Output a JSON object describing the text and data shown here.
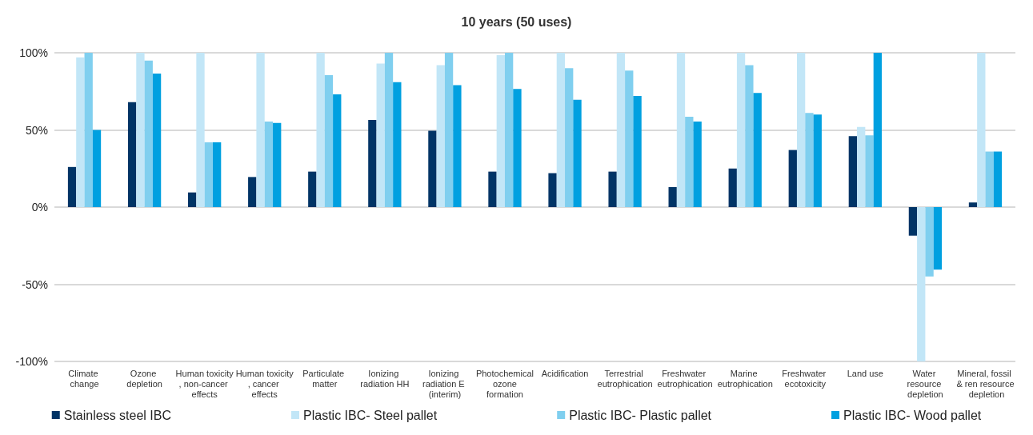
{
  "chart_data": {
    "type": "bar",
    "title": "10 years (50 uses)",
    "categories": [
      "Climate change",
      "Ozone depletion",
      "Human toxicity, non-cancer effects",
      "Human toxicity, cancer effects",
      "Particulate matter",
      "Ionizing radiation HH",
      "Ionizing radiation E (interim)",
      "Photochemical ozone formation",
      "Acidification",
      "Terrestrial eutrophication",
      "Freshwater eutrophication",
      "Marine eutrophication",
      "Freshwater ecotoxicity",
      "Land use",
      "Water resource depletion",
      "Mineral, fossil & ren resource depletion"
    ],
    "series": [
      {
        "name": "Stainless steel IBC",
        "color": "#003466",
        "values": [
          26,
          68,
          9.5,
          19.5,
          23,
          56.5,
          49.5,
          23,
          22,
          23,
          13,
          25,
          37,
          46,
          -18.5,
          3
        ]
      },
      {
        "name": "Plastic IBC- Steel pallet",
        "color": "#c2e6f7",
        "values": [
          97,
          100,
          100,
          100,
          100,
          93,
          92,
          98.5,
          100,
          100,
          100,
          100,
          100,
          52,
          -100,
          100
        ]
      },
      {
        "name": "Plastic IBC- Plastic pallet",
        "color": "#80cfef",
        "values": [
          100,
          95,
          42,
          55.5,
          85.5,
          100,
          100,
          100,
          90,
          88.5,
          58.5,
          92,
          61,
          46.5,
          -45,
          36
        ]
      },
      {
        "name": "Plastic IBC- Wood pallet",
        "color": "#00a0e0",
        "values": [
          50,
          86.5,
          42,
          54.5,
          73,
          81,
          79,
          76.5,
          69.5,
          72,
          55.5,
          74,
          60,
          100,
          -40.5,
          36
        ]
      }
    ],
    "ylim": [
      -100,
      100
    ],
    "yticks": [
      {
        "value": -100,
        "label": "-100%"
      },
      {
        "value": -50,
        "label": "-50%"
      },
      {
        "value": 0,
        "label": "0%"
      },
      {
        "value": 50,
        "label": "50%"
      },
      {
        "value": 100,
        "label": "100%"
      }
    ],
    "grid": "y",
    "legend": "bottom"
  }
}
